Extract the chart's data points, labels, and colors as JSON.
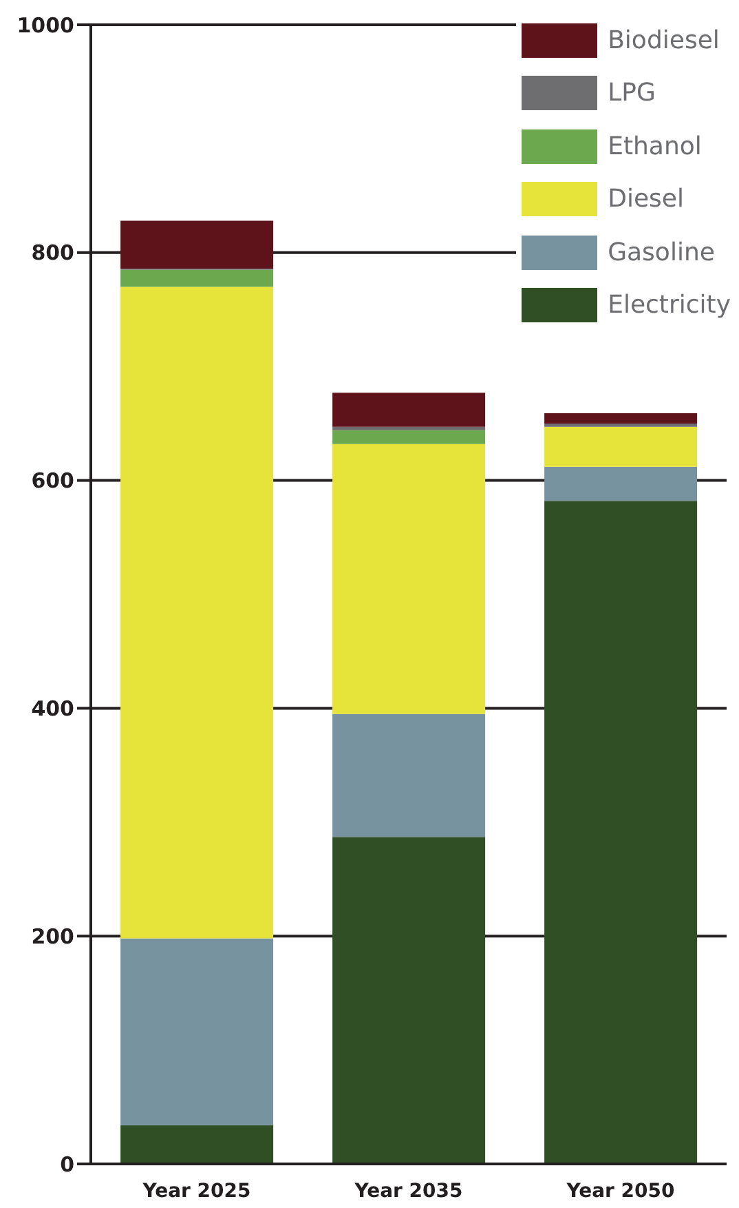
{
  "chart_data": {
    "type": "bar",
    "stacked": true,
    "categories": [
      "Year 2025",
      "Year 2035",
      "Year 2050"
    ],
    "series": [
      {
        "name": "Electricity",
        "color": "#304f24",
        "values": [
          34,
          287,
          582
        ]
      },
      {
        "name": "Gasoline",
        "color": "#7793a0",
        "values": [
          164,
          108,
          30
        ]
      },
      {
        "name": "Diesel",
        "color": "#e6e43a",
        "values": [
          572,
          237,
          35
        ]
      },
      {
        "name": "Ethanol",
        "color": "#6ca84e",
        "values": [
          15,
          12,
          0
        ]
      },
      {
        "name": "LPG",
        "color": "#6e6e70",
        "values": [
          1,
          3,
          3
        ]
      },
      {
        "name": "Biodiesel",
        "color": "#5e1219",
        "values": [
          42,
          30,
          9
        ]
      }
    ],
    "ylim": [
      0,
      1000
    ],
    "yticks": [
      0,
      200,
      400,
      600,
      800,
      1000
    ],
    "grid": "y",
    "legend": "top right"
  }
}
